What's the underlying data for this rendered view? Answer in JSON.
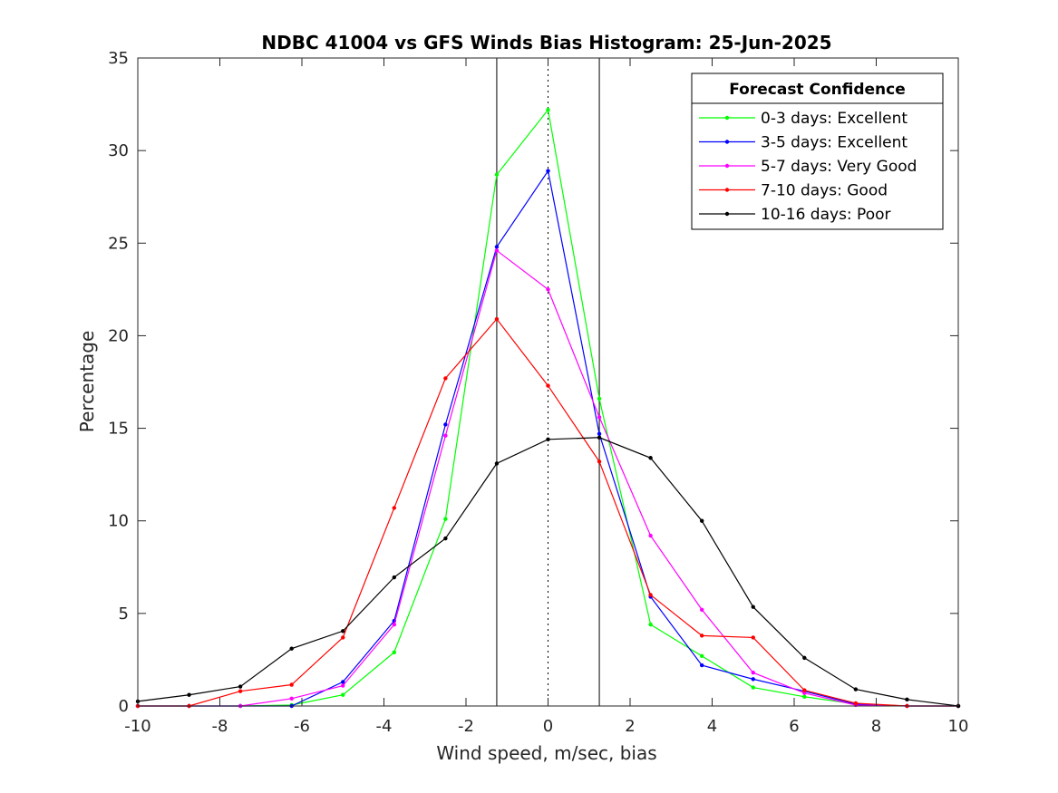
{
  "chart_data": {
    "type": "line",
    "title": "NDBC 41004 vs GFS Winds Bias Histogram: 25-Jun-2025",
    "xlabel": "Wind speed, m/sec, bias",
    "ylabel": "Percentage",
    "xlim": [
      -10,
      10
    ],
    "ylim": [
      0,
      35
    ],
    "xticks": [
      -10,
      -8,
      -6,
      -4,
      -2,
      0,
      2,
      4,
      6,
      8,
      10
    ],
    "yticks": [
      0,
      5,
      10,
      15,
      20,
      25,
      30,
      35
    ],
    "grid": false,
    "legend": {
      "title": "Forecast Confidence",
      "placement": "top-right"
    },
    "vertical_lines": [
      {
        "x": -1.25,
        "style": "solid"
      },
      {
        "x": 0,
        "style": "dotted"
      },
      {
        "x": 1.25,
        "style": "solid"
      }
    ],
    "x": [
      -10,
      -8.75,
      -7.5,
      -6.25,
      -5,
      -3.75,
      -2.5,
      -1.25,
      0,
      1.25,
      2.5,
      3.75,
      5,
      6.25,
      7.5,
      8.75,
      10
    ],
    "series": [
      {
        "name": "0-3 days: Excellent",
        "color": "#00ff00",
        "values": [
          0,
          0,
          0,
          0.05,
          0.6,
          2.9,
          10.1,
          28.7,
          32.2,
          16.6,
          4.4,
          2.7,
          1.0,
          0.5,
          0.1,
          0,
          0
        ]
      },
      {
        "name": "3-5 days: Excellent",
        "color": "#0000ff",
        "values": [
          0,
          0,
          0,
          0,
          1.3,
          4.6,
          15.2,
          24.8,
          28.9,
          14.7,
          5.9,
          2.2,
          1.45,
          0.8,
          0.1,
          0,
          0
        ]
      },
      {
        "name": "5-7 days: Very Good",
        "color": "#ff00ff",
        "values": [
          0,
          0,
          0,
          0.4,
          1.1,
          4.4,
          14.6,
          24.6,
          22.5,
          15.6,
          9.2,
          5.2,
          1.8,
          0.7,
          0.05,
          0,
          0
        ]
      },
      {
        "name": "7-10 days: Good",
        "color": "#ff0000",
        "values": [
          0,
          0,
          0.8,
          1.15,
          3.7,
          10.7,
          17.7,
          20.9,
          17.3,
          13.2,
          6.0,
          3.8,
          3.7,
          0.85,
          0.15,
          0,
          0
        ]
      },
      {
        "name": "10-16 days: Poor",
        "color": "#000000",
        "values": [
          0.25,
          0.6,
          1.05,
          3.1,
          4.05,
          6.95,
          9.05,
          13.1,
          14.4,
          14.5,
          13.4,
          10.0,
          5.35,
          2.6,
          0.9,
          0.35,
          0
        ]
      }
    ]
  }
}
